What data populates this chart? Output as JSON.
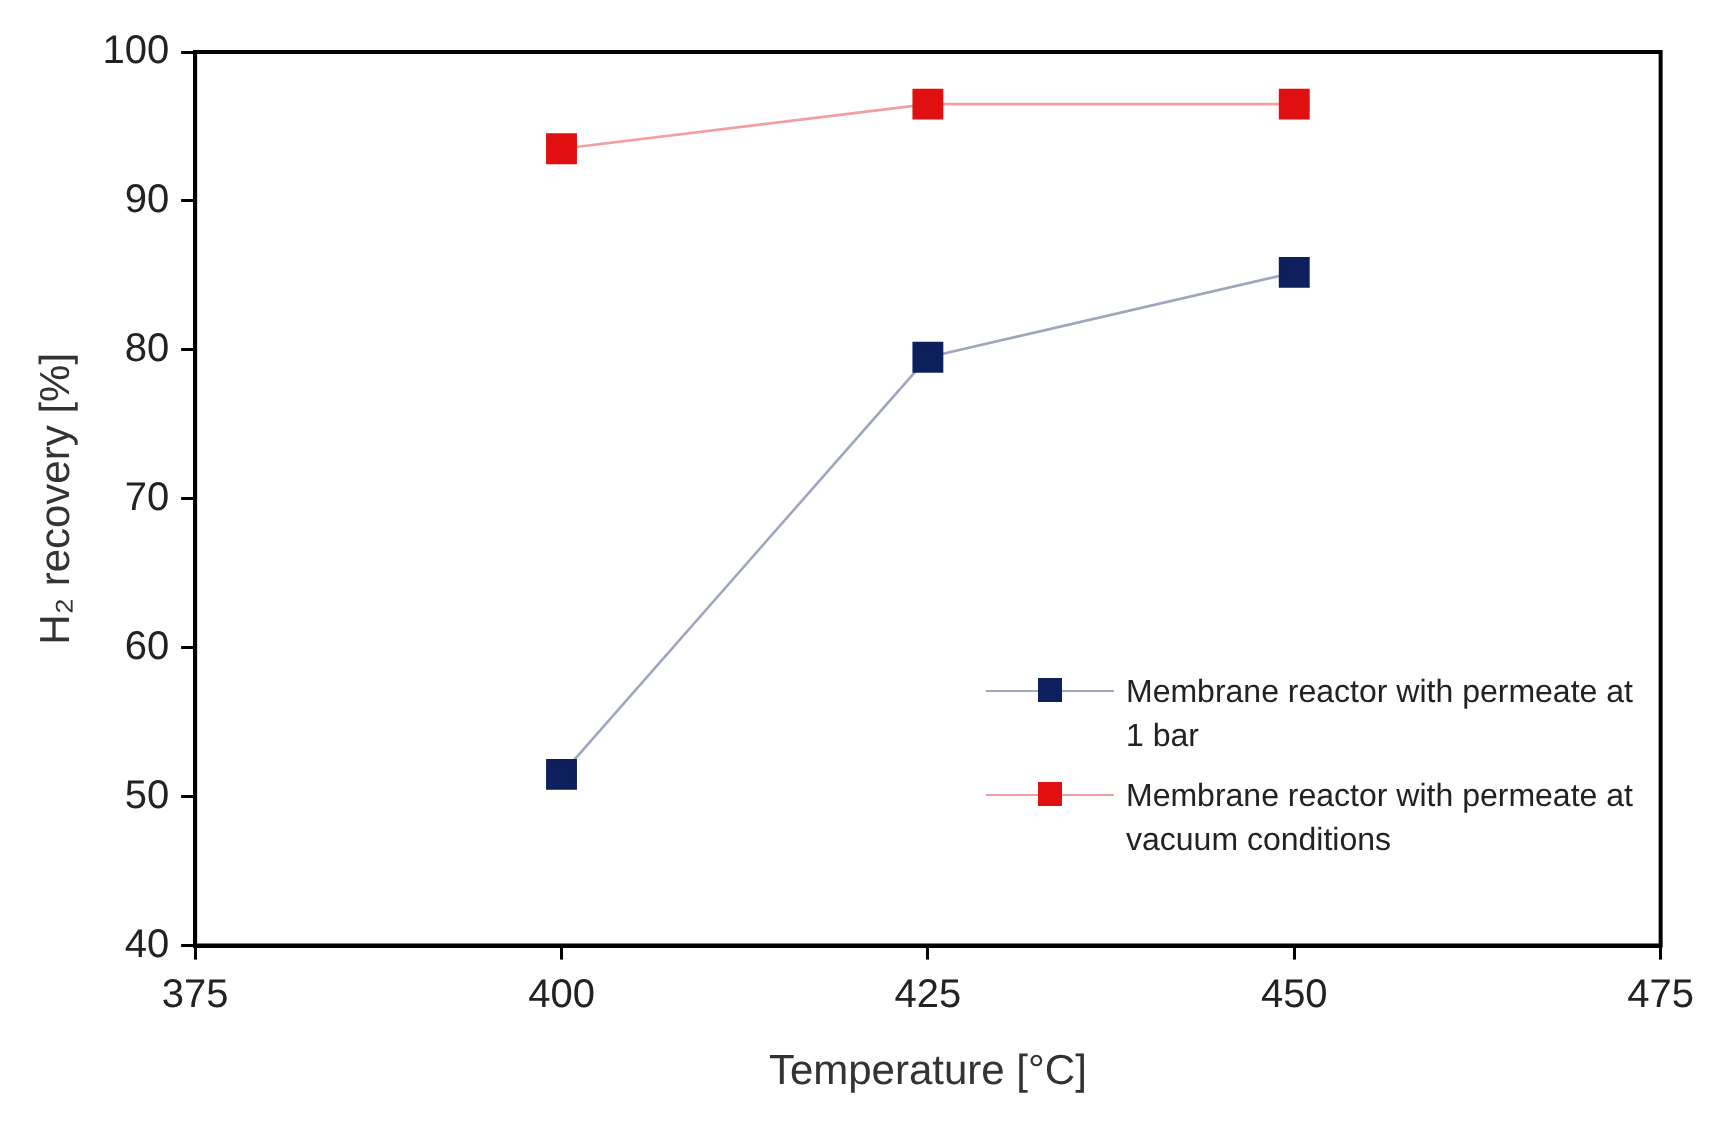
{
  "chart_data": {
    "type": "line",
    "xlabel": "Temperature [°C]",
    "ylabel": "H₂ recovery [%]",
    "x": [
      400,
      425,
      450
    ],
    "series": [
      {
        "name": "Membrane reactor with permeate at 1 bar",
        "color": "#0d1f5c",
        "values": [
          51.5,
          79.5,
          85.2
        ]
      },
      {
        "name": "Membrane reactor with permeate at vacuum conditions",
        "color": "#e01010",
        "values": [
          93.5,
          96.5,
          96.5
        ]
      }
    ],
    "xlim": [
      375,
      475
    ],
    "xticks": [
      375,
      400,
      425,
      450,
      475
    ],
    "ylim": [
      40,
      100
    ],
    "yticks": [
      40,
      50,
      60,
      70,
      80,
      90,
      100
    ],
    "grid": false,
    "legend": "bottom right",
    "marker": "square",
    "line_style": "solid"
  }
}
